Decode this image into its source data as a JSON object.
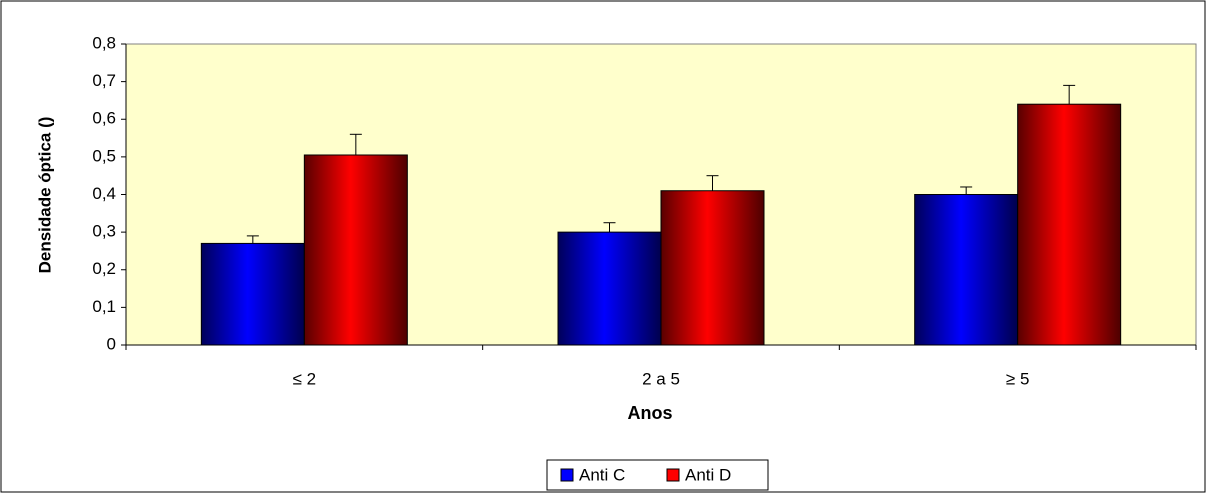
{
  "chart_data": {
    "type": "bar",
    "x_label": "Anos",
    "y_label": "Densidade óptica ()",
    "categories": [
      "≤ 2",
      "2 a 5",
      "≥ 5"
    ],
    "series": [
      {
        "name": "Anti C",
        "color": "#0000ff",
        "values": [
          0.27,
          0.3,
          0.4
        ],
        "errors": [
          0.02,
          0.025,
          0.02
        ]
      },
      {
        "name": "Anti D",
        "color": "#ff0000",
        "values": [
          0.505,
          0.41,
          0.64
        ],
        "errors": [
          0.055,
          0.04,
          0.05
        ]
      }
    ],
    "ylim": [
      0,
      0.8
    ],
    "yticks": [
      0,
      {
        "value": 0.1,
        "label": "0,1"
      },
      {
        "value": 0.2,
        "label": "0,2"
      },
      {
        "value": 0.3,
        "label": "0,3"
      },
      {
        "value": 0.4,
        "label": "0,4"
      },
      {
        "value": 0.5,
        "label": "0,5"
      },
      {
        "value": 0.6,
        "label": "0,6"
      },
      {
        "value": 0.7,
        "label": "0,7"
      },
      {
        "value": 0.8,
        "label": "0,8"
      }
    ],
    "plot_background": "#ffffcc",
    "legend": "bottom"
  }
}
